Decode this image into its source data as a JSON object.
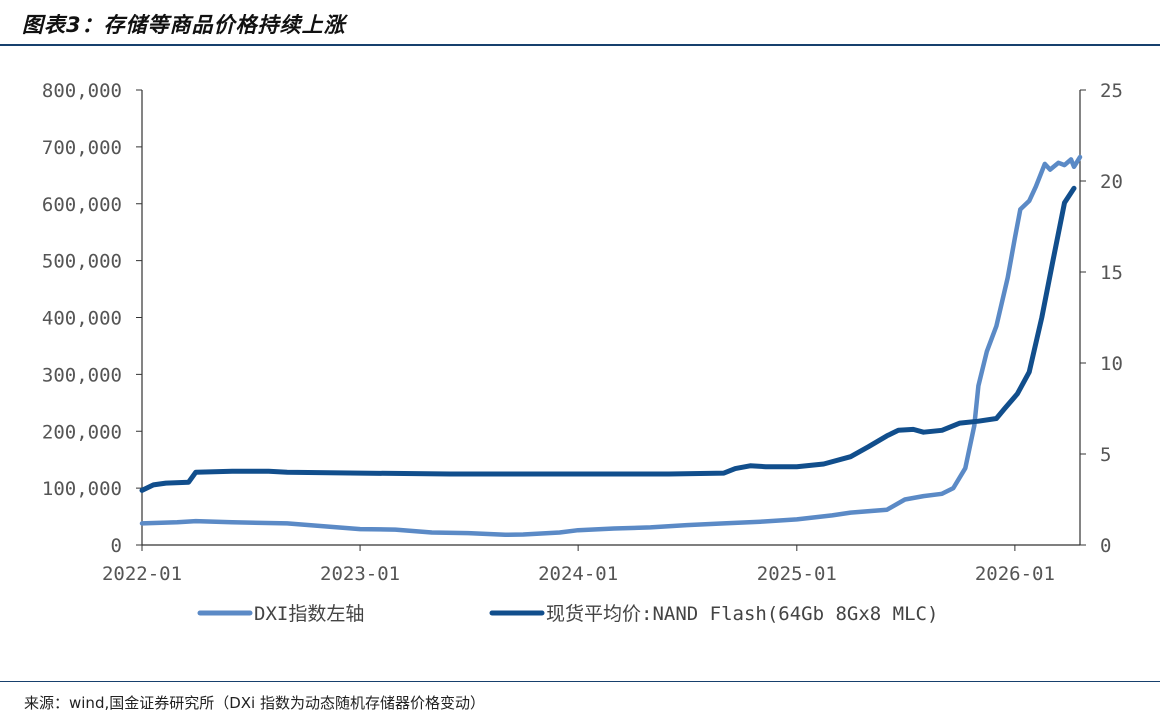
{
  "header": {
    "title": "图表3：存储等商品价格持续上涨"
  },
  "footer": {
    "source": "来源：wind,国金证券研究所（DXi 指数为动态随机存储器价格变动）"
  },
  "chart_data": {
    "type": "line",
    "title": "",
    "x_tick_labels": [
      "2022-01",
      "2023-01",
      "2024-01",
      "2025-01",
      "2026-01"
    ],
    "x_range": [
      "2022-01-01",
      "2026-04-20"
    ],
    "y_left": {
      "range": [
        0,
        800000
      ],
      "tick_labels": [
        "0",
        "100,000",
        "200,000",
        "300,000",
        "400,000",
        "500,000",
        "600,000",
        "700,000",
        "800,000"
      ]
    },
    "y_right": {
      "range": [
        0,
        25
      ],
      "tick_labels": [
        "0",
        "5",
        "10",
        "15",
        "20",
        "25"
      ]
    },
    "legend": {
      "placement": "bottom"
    },
    "grid": false,
    "series": [
      {
        "name": "DXI指数左轴",
        "axis": "left",
        "color": "#5b8ac6",
        "points": [
          [
            "2022-01-01",
            38000
          ],
          [
            "2022-03-01",
            40000
          ],
          [
            "2022-04-01",
            42000
          ],
          [
            "2022-06-01",
            40000
          ],
          [
            "2022-09-01",
            38000
          ],
          [
            "2022-11-01",
            33000
          ],
          [
            "2023-01-01",
            28000
          ],
          [
            "2023-03-01",
            27000
          ],
          [
            "2023-05-01",
            22000
          ],
          [
            "2023-07-01",
            21000
          ],
          [
            "2023-09-01",
            18000
          ],
          [
            "2023-10-01",
            18500
          ],
          [
            "2023-12-01",
            22000
          ],
          [
            "2024-01-01",
            26000
          ],
          [
            "2024-03-01",
            29000
          ],
          [
            "2024-05-01",
            31000
          ],
          [
            "2024-07-01",
            35000
          ],
          [
            "2024-09-01",
            38000
          ],
          [
            "2024-11-01",
            41000
          ],
          [
            "2025-01-01",
            45000
          ],
          [
            "2025-03-01",
            52000
          ],
          [
            "2025-04-01",
            57000
          ],
          [
            "2025-06-01",
            62000
          ],
          [
            "2025-07-01",
            80000
          ],
          [
            "2025-08-01",
            86000
          ],
          [
            "2025-09-01",
            90000
          ],
          [
            "2025-09-20",
            100000
          ],
          [
            "2025-10-10",
            135000
          ],
          [
            "2025-10-25",
            210000
          ],
          [
            "2025-11-01",
            280000
          ],
          [
            "2025-11-15",
            340000
          ],
          [
            "2025-12-01",
            385000
          ],
          [
            "2025-12-20",
            470000
          ],
          [
            "2026-01-01",
            540000
          ],
          [
            "2026-01-10",
            590000
          ],
          [
            "2026-01-25",
            605000
          ],
          [
            "2026-02-05",
            630000
          ],
          [
            "2026-02-20",
            670000
          ],
          [
            "2026-03-01",
            660000
          ],
          [
            "2026-03-15",
            672000
          ],
          [
            "2026-03-25",
            668000
          ],
          [
            "2026-04-05",
            678000
          ],
          [
            "2026-04-10",
            665000
          ],
          [
            "2026-04-20",
            682000
          ]
        ]
      },
      {
        "name": "现货平均价:NAND Flash(64Gb 8Gx8 MLC)",
        "axis": "right",
        "color": "#114e8c",
        "points": [
          [
            "2022-01-01",
            3.0
          ],
          [
            "2022-01-20",
            3.3
          ],
          [
            "2022-02-10",
            3.4
          ],
          [
            "2022-03-20",
            3.45
          ],
          [
            "2022-04-01",
            4.0
          ],
          [
            "2022-06-01",
            4.05
          ],
          [
            "2022-08-01",
            4.05
          ],
          [
            "2022-09-01",
            4.0
          ],
          [
            "2023-01-01",
            3.95
          ],
          [
            "2023-06-01",
            3.9
          ],
          [
            "2024-01-01",
            3.9
          ],
          [
            "2024-06-01",
            3.9
          ],
          [
            "2024-09-01",
            3.95
          ],
          [
            "2024-09-20",
            4.2
          ],
          [
            "2024-10-15",
            4.35
          ],
          [
            "2024-11-10",
            4.3
          ],
          [
            "2025-01-01",
            4.3
          ],
          [
            "2025-02-15",
            4.45
          ],
          [
            "2025-04-01",
            4.85
          ],
          [
            "2025-05-01",
            5.4
          ],
          [
            "2025-06-01",
            6.0
          ],
          [
            "2025-06-20",
            6.3
          ],
          [
            "2025-07-15",
            6.35
          ],
          [
            "2025-08-01",
            6.2
          ],
          [
            "2025-09-01",
            6.3
          ],
          [
            "2025-10-01",
            6.7
          ],
          [
            "2025-11-01",
            6.8
          ],
          [
            "2025-12-01",
            6.95
          ],
          [
            "2025-12-15",
            7.5
          ],
          [
            "2026-01-05",
            8.3
          ],
          [
            "2026-01-25",
            9.5
          ],
          [
            "2026-02-15",
            12.5
          ],
          [
            "2026-03-05",
            15.5
          ],
          [
            "2026-03-25",
            18.8
          ],
          [
            "2026-04-10",
            19.6
          ]
        ]
      }
    ]
  }
}
